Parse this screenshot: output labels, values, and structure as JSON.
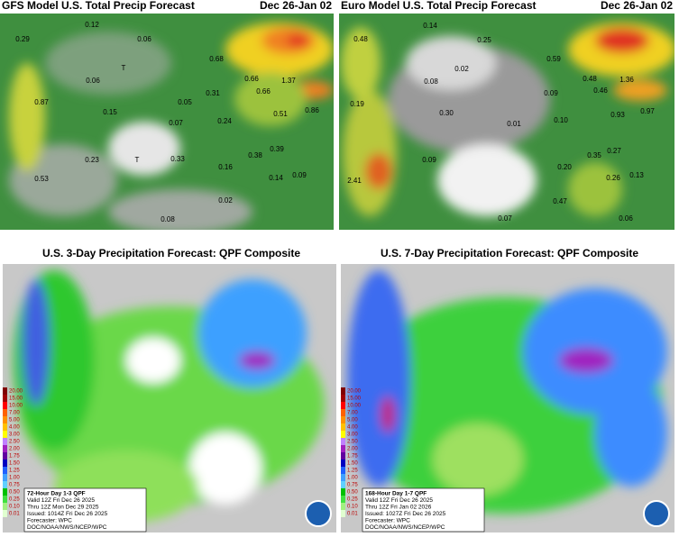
{
  "panels": [
    {
      "title": "GFS Model U.S. Total Precip Forecast",
      "date": "Dec 26-Jan 02",
      "marks": [
        "T",
        "T"
      ],
      "labels": [
        "0.29",
        "0.12",
        "0.06",
        "0.06",
        "0.68",
        "0.66",
        "1.37",
        "0.31",
        "0.66",
        "0.87",
        "0.15",
        "0.05",
        "0.07",
        "0.24",
        "0.51",
        "0.86",
        "0.39",
        "0.23",
        "0.33",
        "0.38",
        "0.16",
        "0.14",
        "0.09",
        "0.53",
        "0.02",
        "0.08"
      ]
    },
    {
      "title": "Euro Model U.S. Total Precip Forecast",
      "date": "Dec 26-Jan 02",
      "labels": [
        "0.48",
        "0.14",
        "0.25",
        "0.02",
        "0.59",
        "0.08",
        "0.48",
        "1.36",
        "0.09",
        "0.46",
        "0.19",
        "0.30",
        "0.01",
        "0.10",
        "0.93",
        "0.97",
        "0.35",
        "0.27",
        "0.09",
        "0.20",
        "2.41",
        "0.26",
        "0.13",
        "0.47",
        "0.07",
        "0.06"
      ]
    }
  ],
  "qpf": [
    {
      "title": "U.S. 3-Day Precipitation Forecast: QPF Composite",
      "legend": [
        "72-Hour Day 1-3 QPF",
        "Valid 12Z Fri Dec 26 2025",
        "Thru 12Z Mon Dec 29 2025",
        "Issued: 1014Z Fri Dec 26 2025",
        "Forecaster: WPC",
        "DOC/NOAA/NWS/NCEP/WPC"
      ]
    },
    {
      "title": "U.S. 7-Day Precipitation Forecast: QPF Composite",
      "legend": [
        "168-Hour Day 1-7 QPF",
        "Valid 12Z Fri Dec 26 2025",
        "Thru 12Z Fri Jan 02 2026",
        "Issued: 1027Z Fri Dec 26 2025",
        "Forecaster: WPC",
        "DOC/NOAA/NWS/NCEP/WPC"
      ]
    }
  ],
  "scale": [
    "20.00",
    "15.00",
    "10.00",
    "7.00",
    "5.00",
    "4.00",
    "3.00",
    "2.50",
    "2.00",
    "1.75",
    "1.50",
    "1.25",
    "1.00",
    "0.75",
    "0.50",
    "0.25",
    "0.10",
    "0.01"
  ]
}
